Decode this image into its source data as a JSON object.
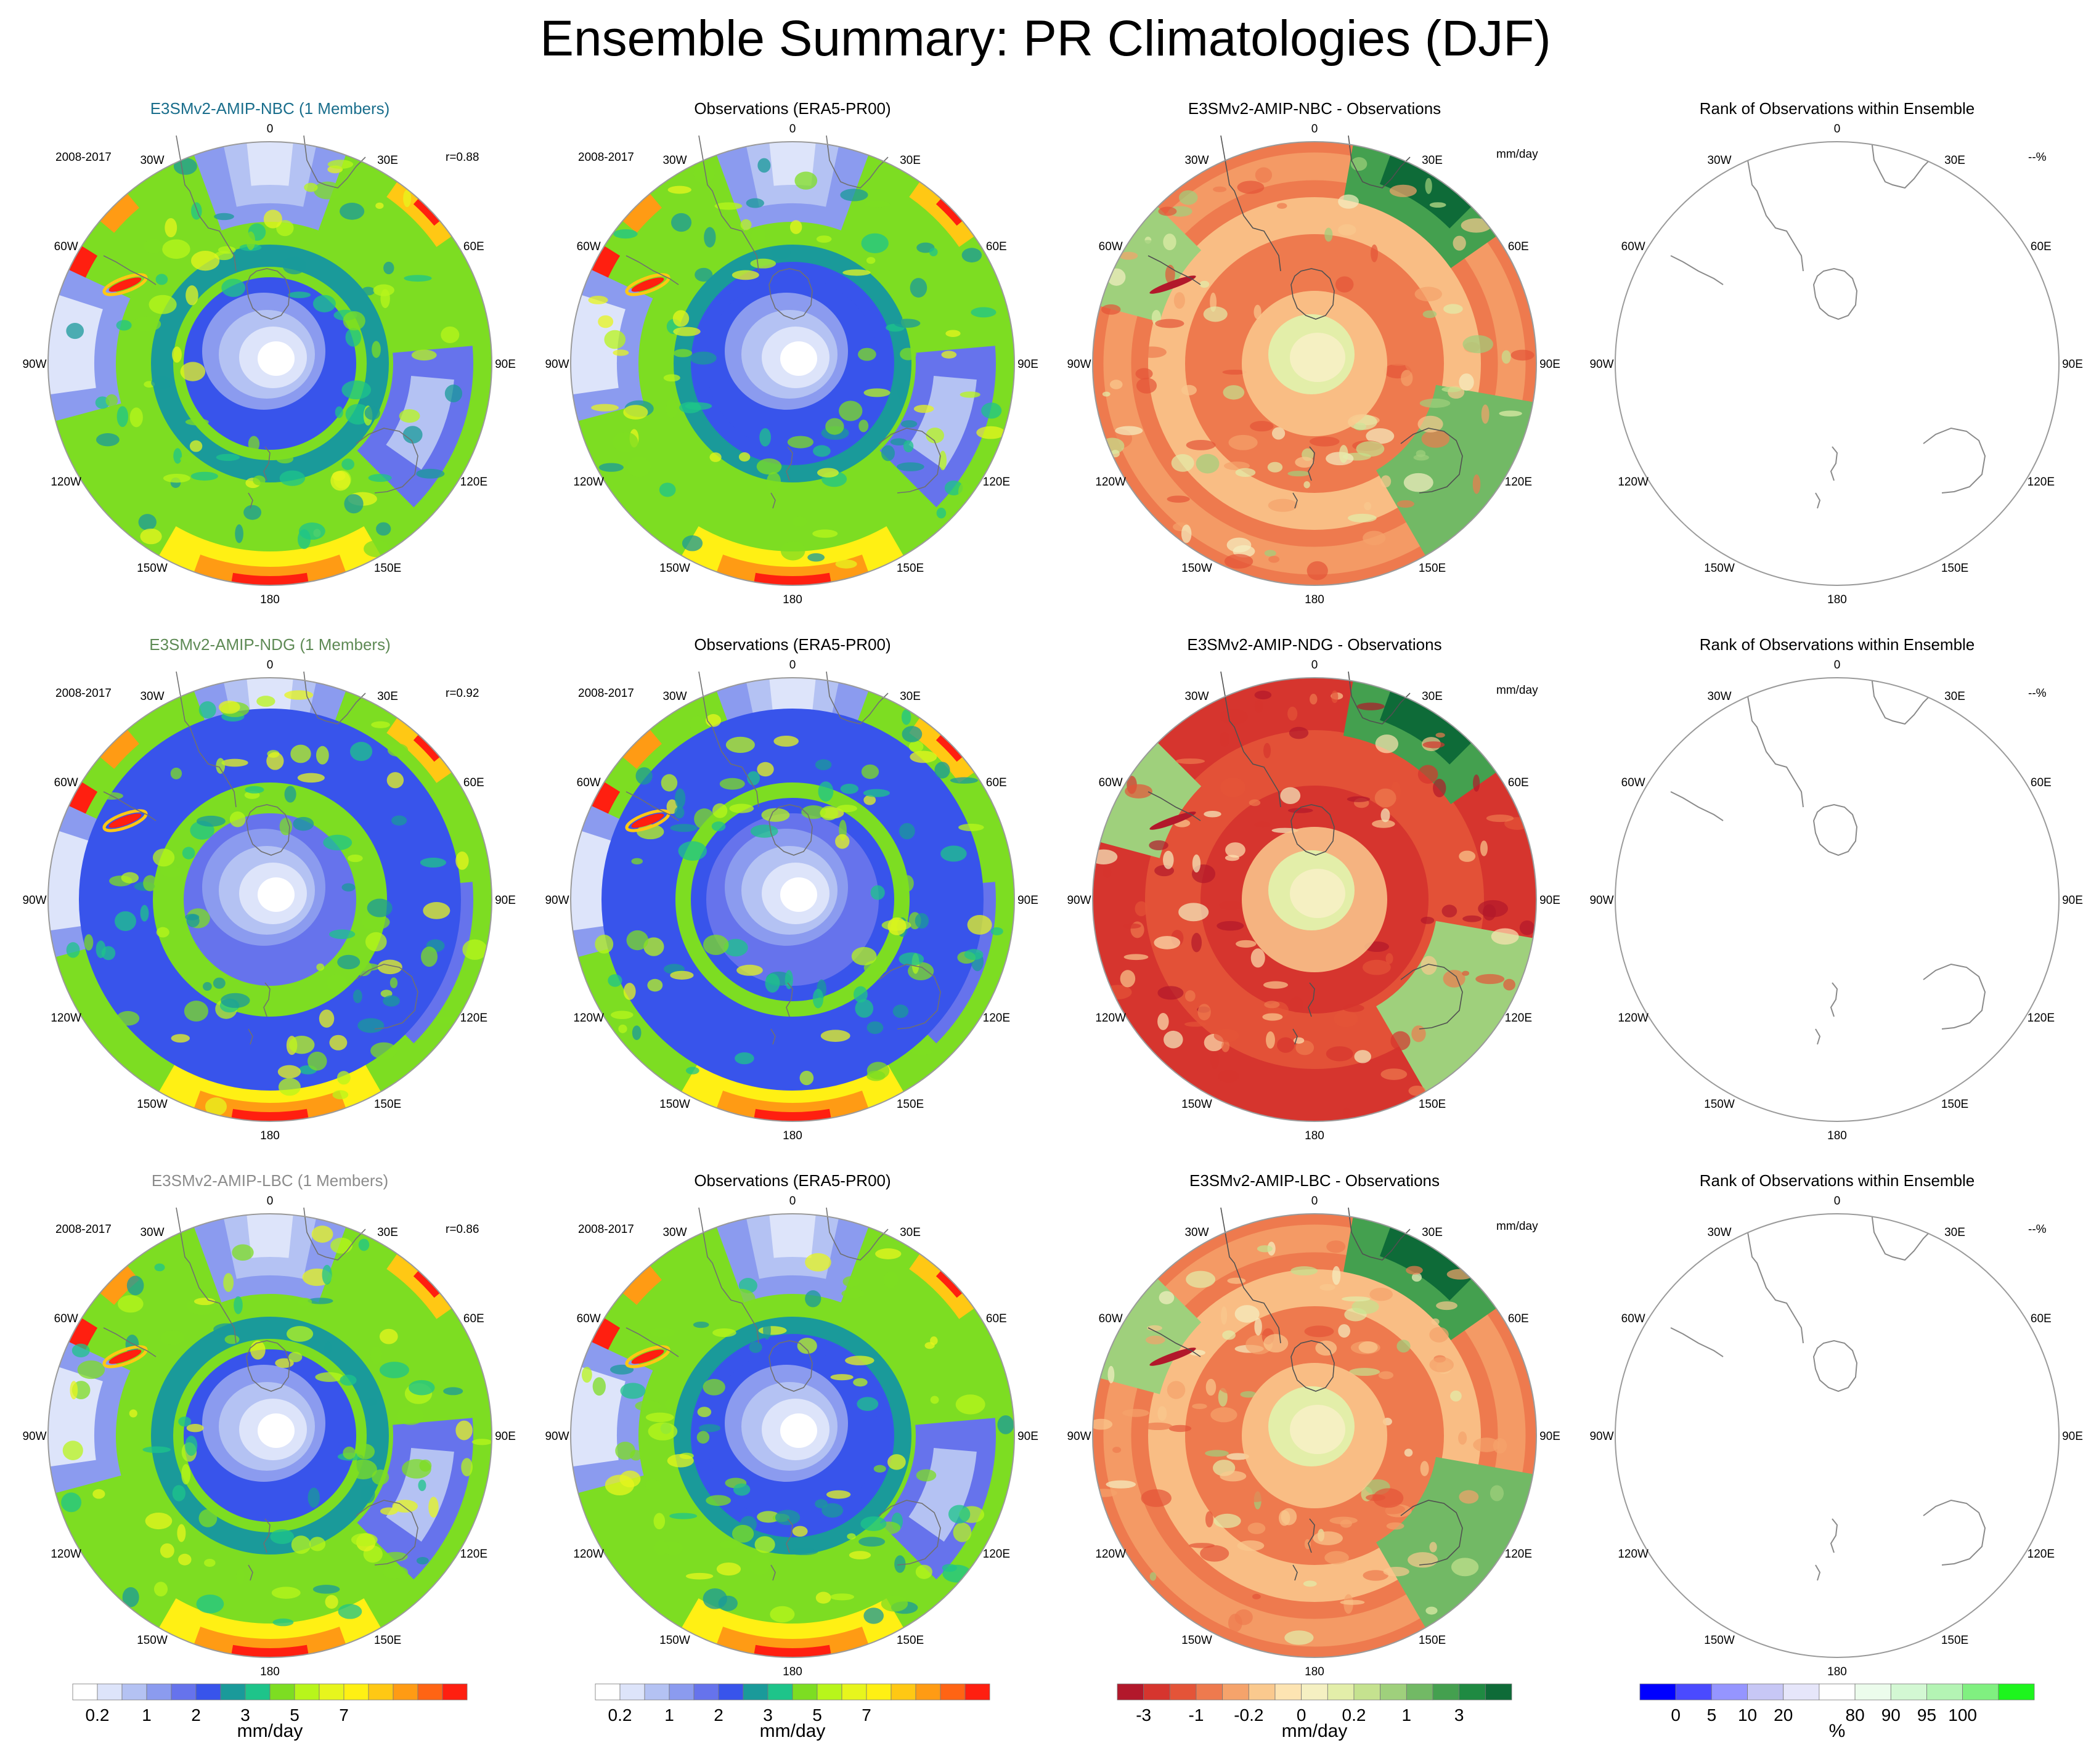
{
  "title": "Ensemble Summary: PR Climatologies (DJF)",
  "colors": {
    "model_title_nbc": "#1a6e8c",
    "model_title_ndg": "#5e8a55",
    "model_title_lbc": "#8c8c8c",
    "coast": "#8a8a8a",
    "map_border": "#9a9a9a"
  },
  "lon_labels": [
    "0",
    "30E",
    "60E",
    "90E",
    "120E",
    "150E",
    "180",
    "150W",
    "120W",
    "90W",
    "60W",
    "30W"
  ],
  "rows": [
    {
      "model": {
        "title": "E3SMv2-AMIP-NBC (1 Members)",
        "period": "2008-2017",
        "r": "r=0.88"
      },
      "obs": {
        "title": "Observations (ERA5-PR00)",
        "period": "2008-2017"
      },
      "diff": {
        "title": "E3SMv2-AMIP-NBC - Observations",
        "unit": "mm/day"
      },
      "rank": {
        "title": "Rank of Observations within Ensemble",
        "unit": "--%"
      }
    },
    {
      "model": {
        "title": "E3SMv2-AMIP-NDG (1 Members)",
        "period": "2008-2017",
        "r": "r=0.92"
      },
      "obs": {
        "title": "Observations (ERA5-PR00)",
        "period": "2008-2017"
      },
      "diff": {
        "title": "E3SMv2-AMIP-NDG - Observations",
        "unit": "mm/day"
      },
      "rank": {
        "title": "Rank of Observations within Ensemble",
        "unit": "--%"
      }
    },
    {
      "model": {
        "title": "E3SMv2-AMIP-LBC (1 Members)",
        "period": "2008-2017",
        "r": "r=0.86"
      },
      "obs": {
        "title": "Observations (ERA5-PR00)",
        "period": "2008-2017"
      },
      "diff": {
        "title": "E3SMv2-AMIP-LBC - Observations",
        "unit": "mm/day"
      },
      "rank": {
        "title": "Rank of Observations within Ensemble",
        "unit": "--%"
      }
    }
  ],
  "chart_data": {
    "type": "heatmap",
    "projection": "south-polar stereographic",
    "season": "DJF",
    "variable": "PR",
    "colorbars": [
      {
        "name": "precip",
        "unit": "mm/day",
        "colors": [
          "#ffffff",
          "#dde4fa",
          "#b4c2f3",
          "#8b9bef",
          "#6673ec",
          "#3854eb",
          "#1a9a9a",
          "#1ec48a",
          "#7ddd22",
          "#b8f51b",
          "#e7f51d",
          "#fff014",
          "#ffc814",
          "#ff9b14",
          "#ff6414",
          "#ff1f10"
        ],
        "tick_labels": [
          "0.2",
          "1",
          "2",
          "3",
          "5",
          "7"
        ],
        "tick_boundaries": [
          1,
          3,
          5,
          7,
          9,
          11
        ]
      },
      {
        "name": "diff",
        "unit": "mm/day",
        "colors": [
          "#b2182b",
          "#d6352e",
          "#e45438",
          "#ee7a4e",
          "#f5a36b",
          "#fac98e",
          "#fde4b2",
          "#f5f0c2",
          "#e3eea9",
          "#c5e28f",
          "#9fd07c",
          "#72b965",
          "#44a04f",
          "#1f8a42",
          "#0e6b38"
        ],
        "tick_labels": [
          "-3",
          "-1",
          "-0.2",
          "0",
          "0.2",
          "1",
          "3"
        ],
        "tick_boundaries": [
          1,
          3,
          5,
          7,
          9,
          11,
          13
        ]
      },
      {
        "name": "rank",
        "unit": "%",
        "colors": [
          "#0000ff",
          "#4a4aff",
          "#9595ff",
          "#c7c7f5",
          "#e6e6fa",
          "#ffffff",
          "#ecfcec",
          "#d3f8d3",
          "#b4f4b4",
          "#80f080",
          "#1df51d"
        ],
        "tick_labels": [
          "0",
          "5",
          "10",
          "20",
          "80",
          "90",
          "95",
          "100"
        ],
        "tick_boundaries": [
          1,
          2,
          3,
          4,
          6,
          7,
          8,
          9
        ]
      }
    ]
  }
}
